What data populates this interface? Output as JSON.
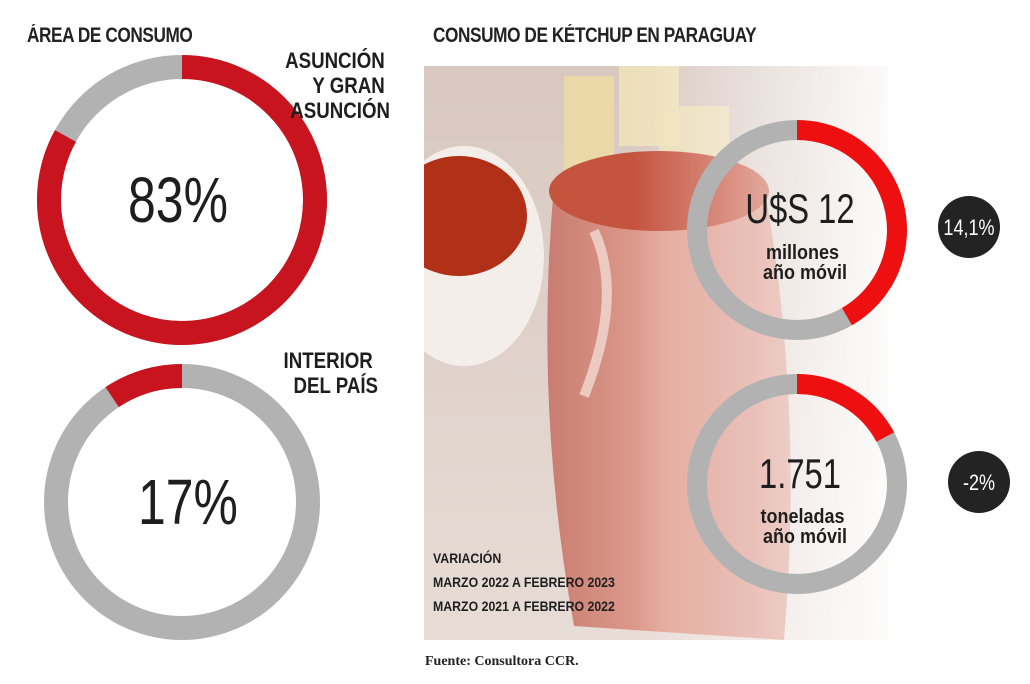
{
  "left_title": "ÁREA DE CONSUMO",
  "right_title": "CONSUMO DE KÉTCHUP EN PARAGUAY",
  "colors": {
    "accent": "#c8141e",
    "bright_red": "#ee1010",
    "gray": "#b2b2b2",
    "dark_badge": "#232323"
  },
  "chart_data": [
    {
      "type": "pie",
      "title": "ÁREA DE CONSUMO",
      "variant": "donut",
      "categories": [
        "ASUNCIÓN Y GRAN ASUNCIÓN",
        "INTERIOR DEL PAÍS"
      ],
      "values": [
        83,
        17
      ],
      "unit": "%",
      "donuts": [
        {
          "label_lines": [
            "ASUNCIÓN",
            "Y GRAN",
            "ASUNCIÓN"
          ],
          "value": 83,
          "display": "83%"
        },
        {
          "label_lines": [
            "INTERIOR",
            "DEL PAÍS"
          ],
          "value": 17,
          "display": "17%"
        }
      ]
    },
    {
      "type": "pie",
      "title": "CONSUMO DE KÉTCHUP EN PARAGUAY",
      "variant": "donut",
      "metrics": [
        {
          "value_text": "U$S 12",
          "unit_lines": [
            "millones",
            "año móvil"
          ],
          "variation": "14,1%",
          "variation_value": 14.1
        },
        {
          "value_text": "1.751",
          "unit_lines": [
            "toneladas",
            "año móvil"
          ],
          "variation": "-2%",
          "variation_value": -2
        }
      ]
    }
  ],
  "variation_note": [
    "VARIACIÓN",
    "MARZO 2022 A FEBRERO 2023",
    "MARZO 2021 A FEBRERO 2022"
  ],
  "source": "Fuente: Consultora CCR."
}
